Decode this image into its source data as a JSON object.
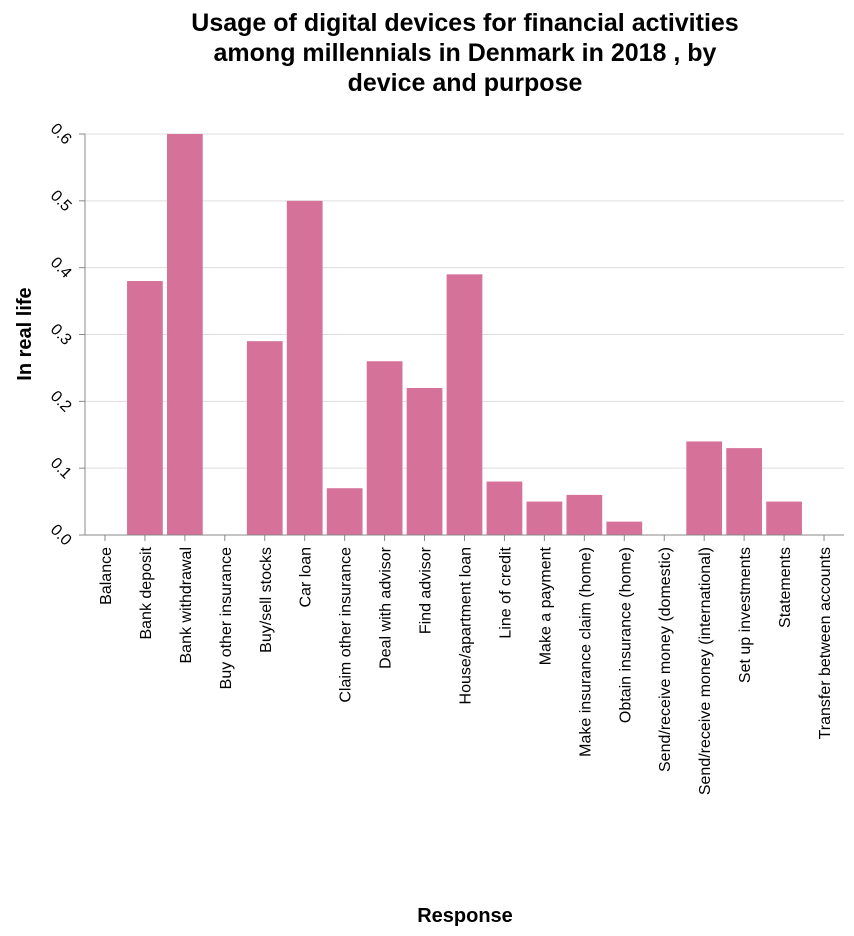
{
  "chart_data": {
    "type": "bar",
    "title": [
      "Usage of digital devices for financial activities",
      "among millennials in Denmark in 2018 , by",
      "device and purpose"
    ],
    "xlabel": "Response",
    "ylabel": "In real life",
    "ylim": [
      0,
      0.6
    ],
    "yticks": [
      "0.0",
      "0.1",
      "0.2",
      "0.3",
      "0.4",
      "0.5",
      "0.6"
    ],
    "grid": true,
    "bar_color": "#d6729a",
    "categories": [
      "Balance",
      "Bank deposit",
      "Bank withdrawal",
      "Buy other insurance",
      "Buy/sell stocks",
      "Car loan",
      "Claim other insurance",
      "Deal with advisor",
      "Find advisor",
      "House/apartment loan",
      "Line of credit",
      "Make a payment",
      "Make insurance claim (home)",
      "Obtain insurance (home)",
      "Send/receive money (domestic)",
      "Send/receive money (international)",
      "Set up investments",
      "Statements",
      "Transfer between accounts"
    ],
    "values": [
      0,
      0.38,
      0.6,
      0,
      0.29,
      0.5,
      0.07,
      0.26,
      0.22,
      0.39,
      0.08,
      0.05,
      0.06,
      0.02,
      0,
      0.14,
      0.13,
      0.05,
      0
    ]
  }
}
